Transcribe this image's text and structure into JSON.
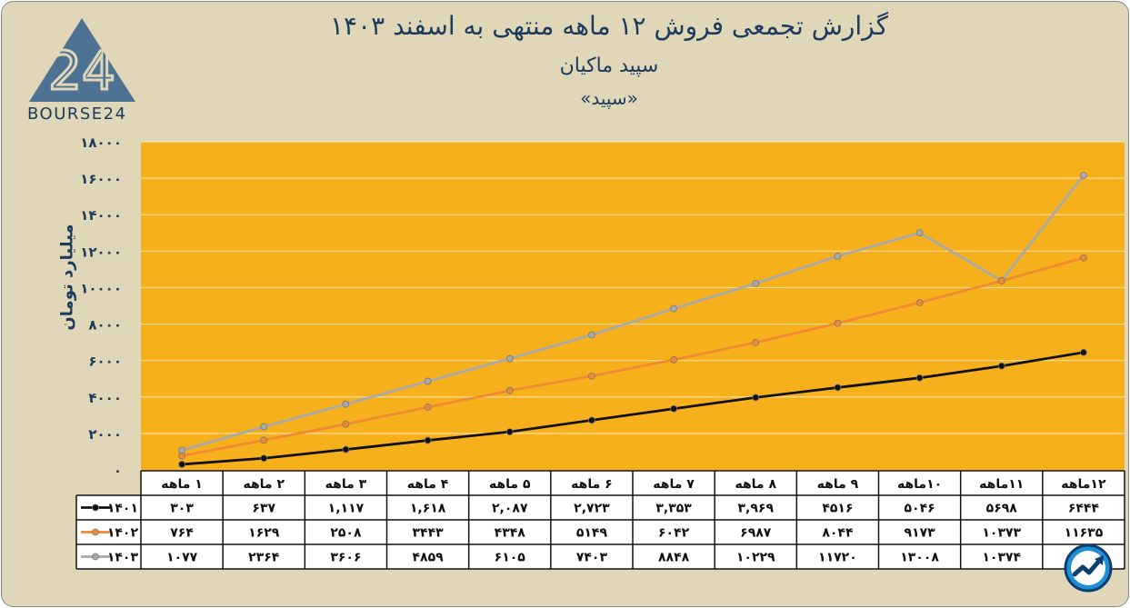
{
  "header": {
    "title": "گزارش تجمعی فروش ۱۲ ماهه منتهی به اسفند ۱۴۰۳",
    "subtitle": "سپید ماکیان",
    "ticker": "«سپید»"
  },
  "logo": {
    "text": "BOURSE24",
    "mark": "24"
  },
  "colors": {
    "background": "#e0d6b8",
    "plot": "#f6b01c",
    "s1401": "#111111",
    "s1402": "#f08a30",
    "s1403": "#a9a9a9",
    "text": "#1c3a5c"
  },
  "badge": {
    "icon": "trend-arrow-icon"
  },
  "chart_data": {
    "type": "line",
    "title": "گزارش تجمعی فروش ۱۲ ماهه منتهی به اسفند ۱۴۰۳",
    "ylabel": "میلیارد تومان",
    "ylim": [
      0,
      18000
    ],
    "yticks": [
      "۰",
      "۲۰۰۰",
      "۴۰۰۰",
      "۶۰۰۰",
      "۸۰۰۰",
      "۱۰۰۰۰",
      "۱۲۰۰۰",
      "۱۴۰۰۰",
      "۱۶۰۰۰",
      "۱۸۰۰۰"
    ],
    "categories": [
      "۱ ماهه",
      "۲ ماهه",
      "۳ ماهه",
      "۴ ماهه",
      "۵ ماهه",
      "۶ ماهه",
      "۷ ماهه",
      "۸ ماهه",
      "۹ ماهه",
      "۱۰ماهه",
      "۱۱ماهه",
      "۱۲ماهه"
    ],
    "grid": true,
    "legend": "data-table",
    "series": [
      {
        "name": "۱۴۰۱",
        "values": [
          303,
          637,
          1117,
          1618,
          2087,
          2723,
          3353,
          3969,
          4516,
          5046,
          5698,
          6444
        ],
        "labels": [
          "۳۰۳",
          "۶۳۷",
          "۱,۱۱۷",
          "۱,۶۱۸",
          "۲,۰۸۷",
          "۲,۷۲۳",
          "۳,۳۵۳",
          "۳,۹۶۹",
          "۴۵۱۶",
          "۵۰۴۶",
          "۵۶۹۸",
          "۶۴۴۴"
        ]
      },
      {
        "name": "۱۴۰۲",
        "values": [
          764,
          1629,
          2508,
          3443,
          4348,
          5149,
          6042,
          6987,
          8044,
          9173,
          10373,
          11635
        ],
        "labels": [
          "۷۶۴",
          "۱۶۲۹",
          "۲۵۰۸",
          "۳۴۴۳",
          "۴۳۴۸",
          "۵۱۴۹",
          "۶۰۴۲",
          "۶۹۸۷",
          "۸۰۴۴",
          "۹۱۷۳",
          "۱۰۳۷۳",
          "۱۱۶۳۵"
        ]
      },
      {
        "name": "۱۴۰۳",
        "values": [
          1077,
          2364,
          3606,
          4859,
          6105,
          7403,
          8848,
          10229,
          11720,
          13008,
          10374,
          16155
        ],
        "labels": [
          "۱۰۷۷",
          "۲۳۶۴",
          "۳۶۰۶",
          "۴۸۵۹",
          "۶۱۰۵",
          "۷۴۰۳",
          "۸۸۴۸",
          "۱۰۲۲۹",
          "۱۱۷۲۰",
          "۱۳۰۰۸",
          "۱۰۳۷۴",
          ""
        ]
      }
    ]
  }
}
